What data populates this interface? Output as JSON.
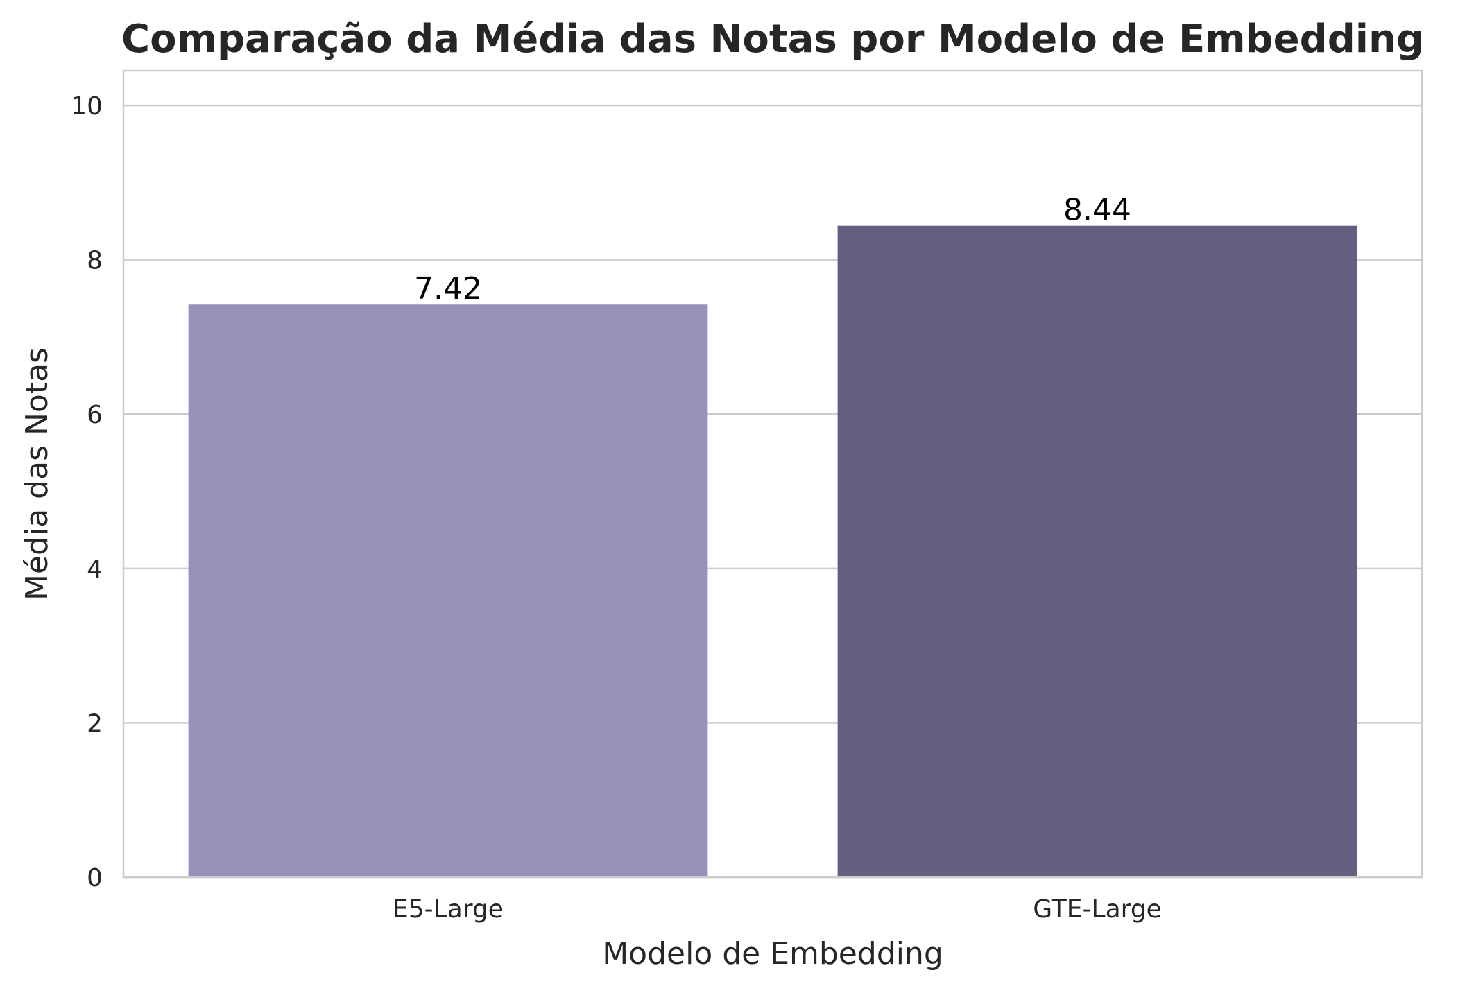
{
  "chart_data": {
    "type": "bar",
    "title": "Comparação da Média das Notas por Modelo de Embedding",
    "xlabel": "Modelo de Embedding",
    "ylabel": "Média das Notas",
    "categories": [
      "E5-Large",
      "GTE-Large"
    ],
    "values": [
      7.42,
      8.44
    ],
    "data_labels": [
      "7.42",
      "8.44"
    ],
    "colors": [
      "#9792ba",
      "#655f7f"
    ],
    "ylim": [
      0,
      10.45
    ],
    "yticks": [
      0,
      2,
      4,
      6,
      8,
      10
    ],
    "ytick_labels": [
      "0",
      "2",
      "4",
      "6",
      "8",
      "10"
    ],
    "grid": "y-axis",
    "legend": "none"
  }
}
